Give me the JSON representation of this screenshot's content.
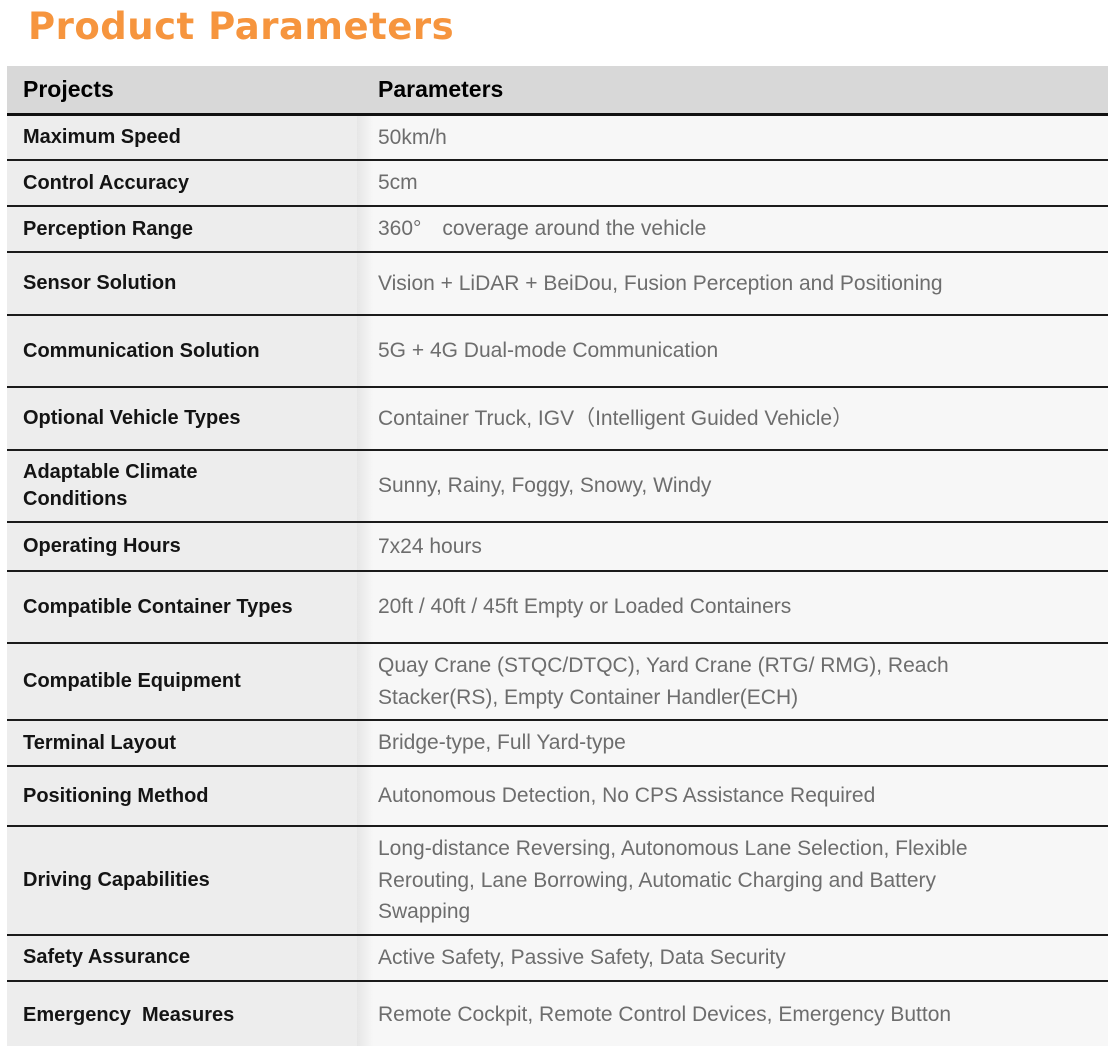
{
  "page_title": "Product Parameters",
  "theme": {
    "title_color": "#F6953E",
    "header_bg": "#d8d8d8",
    "label_column_bg": "#ededed",
    "value_column_bg": "#f7f7f7",
    "separator_color": "#1b1b1b",
    "label_text_color": "#141414",
    "value_text_color": "#6d6d6d"
  },
  "table": {
    "headers": [
      "Projects",
      "Parameters"
    ],
    "rows": [
      {
        "project": "Maximum Speed",
        "parameter": "50km/h"
      },
      {
        "project": "Control Accuracy",
        "parameter": "5cm"
      },
      {
        "project": "Perception Range",
        "parameter": "360°　coverage around the vehicle"
      },
      {
        "project": "Sensor Solution",
        "parameter": "Vision + LiDAR + BeiDou, Fusion Perception and Positioning"
      },
      {
        "project": "Communication Solution",
        "parameter": "5G + 4G Dual-mode Communication"
      },
      {
        "project": "Optional Vehicle Types",
        "parameter": "Container Truck, IGV（Intelligent Guided Vehicle）"
      },
      {
        "project": "Adaptable Climate Conditions",
        "parameter": "Sunny, Rainy, Foggy, Snowy, Windy"
      },
      {
        "project": "Operating Hours",
        "parameter": "7x24 hours"
      },
      {
        "project": "Compatible Container Types",
        "parameter": "20ft / 40ft / 45ft Empty or Loaded Containers"
      },
      {
        "project": "Compatible Equipment",
        "parameter": "Quay Crane (STQC/DTQC), Yard Crane (RTG/ RMG), Reach Stacker(RS), Empty Container Handler(ECH)"
      },
      {
        "project": "Terminal Layout",
        "parameter": "Bridge-type, Full Yard-type"
      },
      {
        "project": "Positioning Method",
        "parameter": "Autonomous Detection, No CPS Assistance Required"
      },
      {
        "project": "Driving Capabilities",
        "parameter": "Long-distance Reversing, Autonomous Lane Selection, Flexible Rerouting, Lane Borrowing, Automatic Charging and Battery Swapping"
      },
      {
        "project": "Safety Assurance",
        "parameter": "Active Safety, Passive Safety, Data Security"
      },
      {
        "project": "Emergency  Measures",
        "parameter": "Remote Cockpit, Remote Control Devices, Emergency Button"
      }
    ]
  }
}
